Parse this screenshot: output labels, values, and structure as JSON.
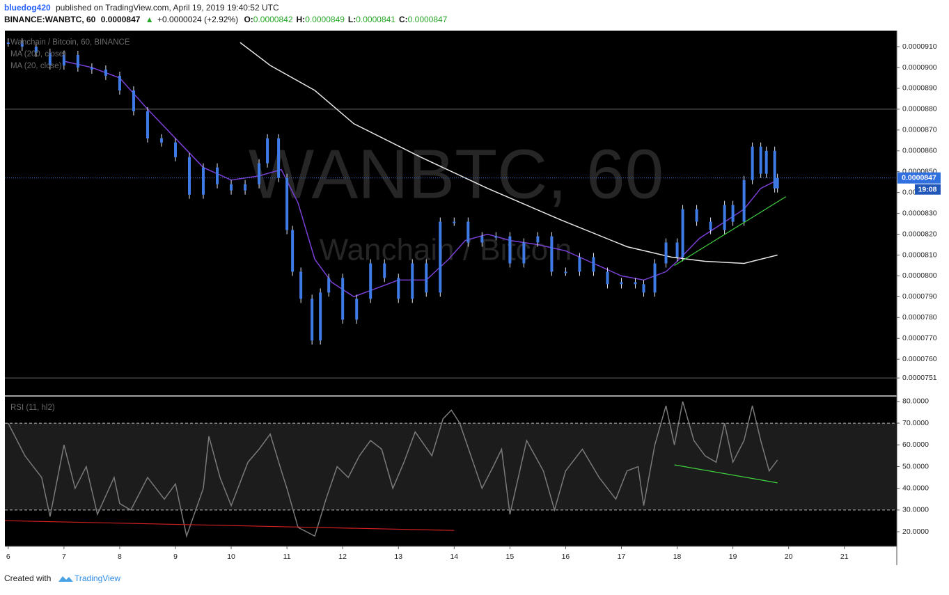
{
  "header": {
    "author": "bluedog420",
    "published": "published on TradingView.com, April 19, 2019 19:40:52 UTC",
    "symbol": "BINANCE:WANBTC, 60",
    "last": "0.0000847",
    "arrow": "▲",
    "change": "+0.0000024 (+2.92%)",
    "ohlc": [
      {
        "label": "O:",
        "value": "0.0000842"
      },
      {
        "label": "H:",
        "value": "0.0000849"
      },
      {
        "label": "L:",
        "value": "0.0000841"
      },
      {
        "label": "C:",
        "value": "0.0000847"
      }
    ]
  },
  "footer": {
    "created": "Created with",
    "brand": "TradingView"
  },
  "chart_data": [
    {
      "type": "candlestick",
      "title": "Wanchain / Bitcoin, 60, BINANCE",
      "watermark": "WANBTC, 60",
      "subtitle": "Wanchain / Bitcoin",
      "color": "#3f7be6",
      "x": [
        6.0,
        6.25,
        6.5,
        6.75,
        7.0,
        7.25,
        7.5,
        7.75,
        8.0,
        8.25,
        8.5,
        8.75,
        9.0,
        9.25,
        9.5,
        9.75,
        10.0,
        10.25,
        10.5,
        10.65,
        10.85,
        11.0,
        11.1,
        11.25,
        11.45,
        11.6,
        11.75,
        12.0,
        12.25,
        12.5,
        12.75,
        13.0,
        13.25,
        13.5,
        13.75,
        14.0,
        14.25,
        14.5,
        14.75,
        15.0,
        15.25,
        15.5,
        15.75,
        16.0,
        16.25,
        16.5,
        16.75,
        17.0,
        17.25,
        17.4,
        17.6,
        17.8,
        18.0,
        18.1,
        18.35,
        18.6,
        18.85,
        19.0,
        19.2,
        19.35,
        19.5,
        19.6,
        19.75,
        19.8
      ],
      "values": [
        9.12e-05,
        9.1e-05,
        9.07e-05,
        9.01e-05,
        9.06e-05,
        9e-05,
        8.99e-05,
        8.96e-05,
        8.89e-05,
        8.79e-05,
        8.66e-05,
        8.64e-05,
        8.57e-05,
        8.39e-05,
        8.52e-05,
        8.44e-05,
        8.41e-05,
        8.44e-05,
        8.54e-05,
        8.66e-05,
        8.47e-05,
        8.22e-05,
        8.02e-05,
        7.89e-05,
        7.69e-05,
        7.92e-05,
        7.99e-05,
        7.79e-05,
        7.89e-05,
        8.06e-05,
        7.99e-05,
        7.89e-05,
        8.06e-05,
        7.92e-05,
        8.26e-05,
        8.26e-05,
        8.16e-05,
        8.19e-05,
        8.19e-05,
        8.06e-05,
        8.16e-05,
        8.19e-05,
        8.02e-05,
        8.02e-05,
        8.09e-05,
        8.02e-05,
        7.96e-05,
        7.97e-05,
        7.96e-05,
        7.92e-05,
        8.06e-05,
        8.16e-05,
        8.09e-05,
        8.32e-05,
        8.26e-05,
        8.22e-05,
        8.34e-05,
        8.26e-05,
        8.46e-05,
        8.62e-05,
        8.49e-05,
        8.6e-05,
        8.42e-05,
        8.47e-05
      ],
      "series": [
        {
          "name": "MA (200, close)",
          "color": "#e6e6e6",
          "x": [
            10.16,
            10.7,
            11.5,
            12.2,
            13.4,
            14.6,
            15.9,
            17.1,
            17.9,
            18.5,
            19.2,
            19.8
          ],
          "values": [
            9.12e-05,
            9.01e-05,
            8.89e-05,
            8.73e-05,
            8.57e-05,
            8.42e-05,
            8.27e-05,
            8.14e-05,
            8.09e-05,
            8.07e-05,
            8.06e-05,
            8.1e-05
          ]
        },
        {
          "name": "MA (20, close)",
          "color": "#7a3fd6",
          "x": [
            7.0,
            7.5,
            8.0,
            8.5,
            9.0,
            9.5,
            10.0,
            10.5,
            10.9,
            11.2,
            11.5,
            11.8,
            12.2,
            12.6,
            13.0,
            13.5,
            13.9,
            14.2,
            14.6,
            15.0,
            15.5,
            16.0,
            16.5,
            17.0,
            17.4,
            17.8,
            18.0,
            18.4,
            18.8,
            19.2,
            19.5,
            19.8
          ],
          "values": [
            9.03e-05,
            9e-05,
            8.95e-05,
            8.8e-05,
            8.66e-05,
            8.52e-05,
            8.46e-05,
            8.48e-05,
            8.51e-05,
            8.35e-05,
            8.08e-05,
            7.97e-05,
            7.9e-05,
            7.94e-05,
            7.98e-05,
            7.98e-05,
            8.08e-05,
            8.17e-05,
            8.2e-05,
            8.17e-05,
            8.15e-05,
            8.12e-05,
            8.06e-05,
            8e-05,
            7.98e-05,
            8.02e-05,
            8.07e-05,
            8.18e-05,
            8.25e-05,
            8.32e-05,
            8.42e-05,
            8.46e-05
          ]
        }
      ],
      "xlim": [
        5.94,
        21.94
      ],
      "xticks": [
        6,
        7,
        8,
        9,
        10,
        11,
        12,
        13,
        14,
        15,
        16,
        17,
        18,
        19,
        20,
        21
      ],
      "ylim": [
        7.427e-05,
        9.177e-05
      ],
      "yticks": [
        {
          "value": 7.51e-05,
          "label": "0.0000751"
        },
        {
          "value": 7.6e-05,
          "label": "0.0000760"
        },
        {
          "value": 7.7e-05,
          "label": "0.0000770"
        },
        {
          "value": 7.8e-05,
          "label": "0.0000780"
        },
        {
          "value": 7.9e-05,
          "label": "0.0000790"
        },
        {
          "value": 8e-05,
          "label": "0.0000800"
        },
        {
          "value": 8.1e-05,
          "label": "0.0000810"
        },
        {
          "value": 8.2e-05,
          "label": "0.0000820"
        },
        {
          "value": 8.3e-05,
          "label": "0.0000830"
        },
        {
          "value": 8.4e-05,
          "label": "0.0000840"
        },
        {
          "value": 8.5e-05,
          "label": "0.0000850"
        },
        {
          "value": 8.6e-05,
          "label": "0.0000860"
        },
        {
          "value": 8.7e-05,
          "label": "0.0000870"
        },
        {
          "value": 8.8e-05,
          "label": "0.0000880"
        },
        {
          "value": 8.9e-05,
          "label": "0.0000890"
        },
        {
          "value": 9e-05,
          "label": "0.0000900"
        },
        {
          "value": 9.1e-05,
          "label": "0.0000910"
        }
      ],
      "hlines": [
        8.8e-05,
        7.51e-05
      ],
      "last_value": {
        "value": 8.47e-05,
        "label": "0.0000847",
        "timer": "19:08"
      },
      "trendlines": [
        {
          "x": [
            17.95,
            19.95
          ],
          "values": [
            8.05e-05,
            8.38e-05
          ],
          "color": "#3fd23f"
        }
      ]
    },
    {
      "type": "line",
      "title": "RSI (11, hl2)",
      "color": "#7a7a7a",
      "x": [
        6.0,
        6.3,
        6.6,
        6.75,
        7.0,
        7.2,
        7.4,
        7.6,
        7.9,
        8.0,
        8.2,
        8.5,
        8.8,
        9.0,
        9.2,
        9.5,
        9.6,
        9.8,
        10.0,
        10.3,
        10.5,
        10.7,
        10.9,
        11.0,
        11.2,
        11.5,
        11.7,
        11.9,
        12.1,
        12.3,
        12.5,
        12.7,
        12.9,
        13.1,
        13.3,
        13.6,
        13.8,
        13.95,
        14.1,
        14.3,
        14.5,
        14.7,
        14.85,
        15.0,
        15.3,
        15.6,
        15.8,
        16.0,
        16.3,
        16.6,
        16.9,
        17.1,
        17.3,
        17.4,
        17.6,
        17.8,
        17.95,
        18.1,
        18.3,
        18.5,
        18.7,
        18.85,
        19.0,
        19.2,
        19.35,
        19.5,
        19.65,
        19.8
      ],
      "values": [
        70,
        55,
        45,
        27,
        60,
        40,
        50,
        28,
        45,
        33,
        30,
        45,
        35,
        42,
        18,
        40,
        64,
        45,
        32,
        52,
        58,
        65,
        48,
        40,
        22,
        18,
        35,
        50,
        45,
        55,
        62,
        58,
        40,
        52,
        66,
        55,
        72,
        76,
        70,
        55,
        40,
        50,
        58,
        28,
        62,
        48,
        30,
        48,
        58,
        45,
        35,
        48,
        50,
        32,
        60,
        78,
        60,
        80,
        62,
        55,
        52,
        70,
        52,
        62,
        78,
        62,
        48,
        53
      ],
      "ylim": [
        13.3,
        82.2
      ],
      "yticks": [
        {
          "value": 20,
          "label": "20.0000"
        },
        {
          "value": 30,
          "label": "30.0000"
        },
        {
          "value": 40,
          "label": "40.0000"
        },
        {
          "value": 50,
          "label": "50.0000"
        },
        {
          "value": 60,
          "label": "60.0000"
        },
        {
          "value": 70,
          "label": "70.0000"
        },
        {
          "value": 80,
          "label": "80.0000"
        }
      ],
      "band": [
        30,
        70
      ],
      "trendlines": [
        {
          "x": [
            17.95,
            19.8
          ],
          "values": [
            50.8,
            42.5
          ],
          "color": "#3fd23f"
        },
        {
          "x": [
            5.94,
            14.0
          ],
          "values": [
            25.1,
            20.6
          ],
          "color": "#d42020"
        }
      ]
    }
  ]
}
